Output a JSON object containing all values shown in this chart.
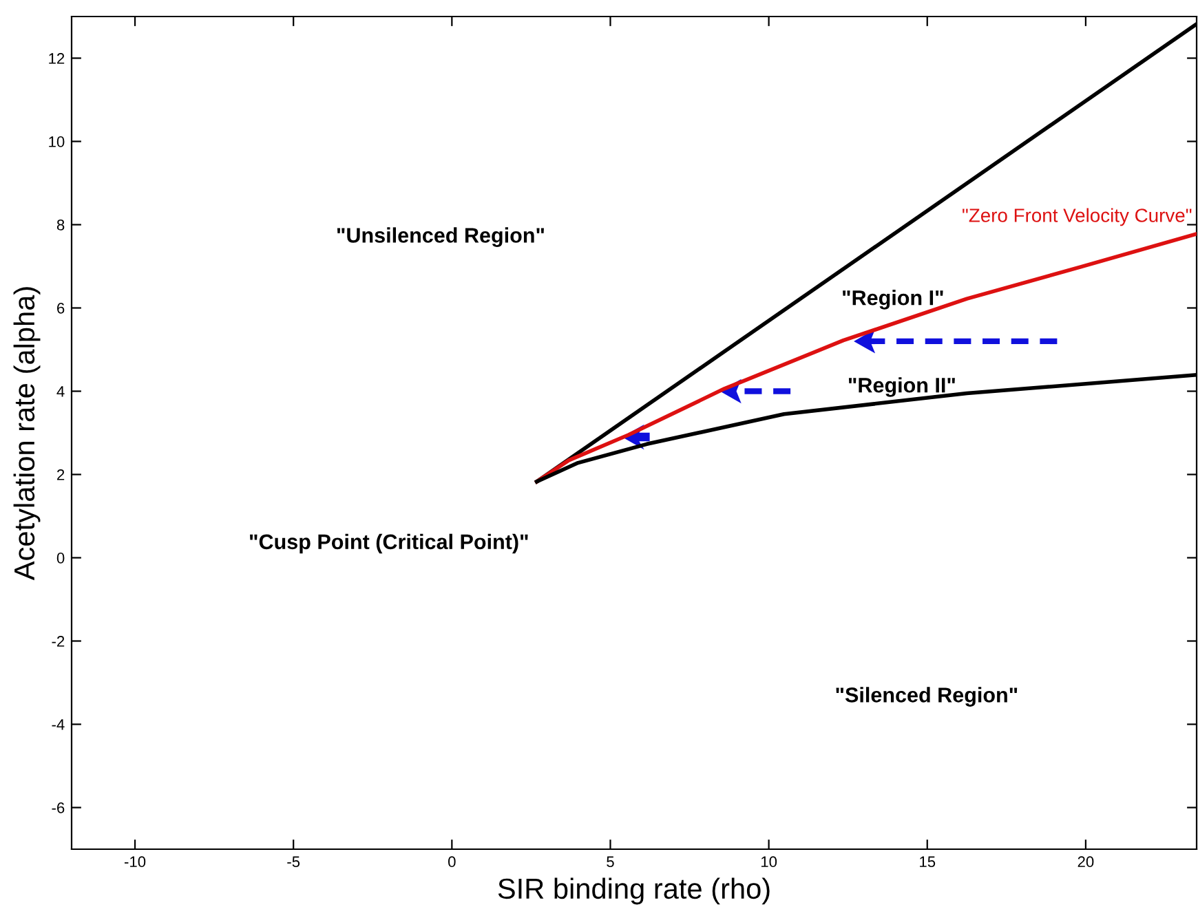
{
  "chart_data": {
    "type": "line",
    "xlabel": "SIR binding rate (rho)",
    "ylabel": "Acetylation rate (alpha)",
    "xlim": [
      -12,
      23.5
    ],
    "ylim": [
      -7,
      13
    ],
    "xticks": [
      -10,
      -5,
      0,
      5,
      10,
      15,
      20
    ],
    "yticks": [
      -6,
      -4,
      -2,
      0,
      2,
      4,
      6,
      8,
      10,
      12
    ],
    "grid": false,
    "legend": false,
    "marker": "none",
    "series": [
      {
        "color": "#000000",
        "x": [
          2.68,
          23.46
        ],
        "values": [
          1.83,
          12.8
        ]
      },
      {
        "name": "\"Zero Front Velocity Curve\"",
        "color": "#dd1111",
        "x": [
          2.68,
          3.69,
          5.57,
          8.6,
          12.35,
          16.25,
          19.86,
          23.46
        ],
        "values": [
          1.83,
          2.34,
          2.95,
          4.06,
          5.22,
          6.22,
          6.99,
          7.77
        ]
      },
      {
        "color": "#000000",
        "x": [
          2.68,
          3.98,
          6.15,
          10.48,
          16.25,
          23.46
        ],
        "values": [
          1.83,
          2.28,
          2.73,
          3.45,
          3.95,
          4.39
        ]
      }
    ],
    "annotations": [
      "\"Unsilenced Region\"",
      "\"Region I\"",
      "\"Region II\"",
      "\"Cusp Point (Critical Point)\"",
      "\"Silenced Region\""
    ]
  }
}
